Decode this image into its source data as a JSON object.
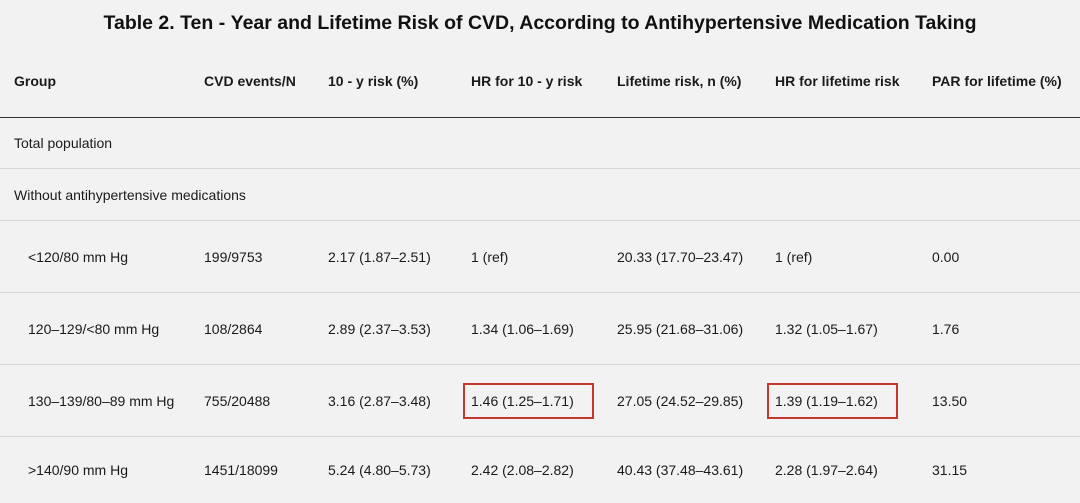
{
  "title": "Table 2. Ten ‑ Year and Lifetime Risk of CVD, According to Antihypertensive Medication Taking",
  "headers": [
    "Group",
    "CVD events/N",
    "10 ‑ y risk (%)",
    "HR for 10 ‑ y risk",
    "Lifetime risk, n (%)",
    "HR for lifetime risk",
    "PAR for lifetime (%)"
  ],
  "sections": [
    "Total population",
    "Without antihypertensive medications"
  ],
  "rows": [
    {
      "group": "<120/80 mm Hg",
      "events": "199/9753",
      "risk10": "2.17 (1.87–2.51)",
      "hr10": "1 (ref)",
      "lifetime": "20.33 (17.70–23.47)",
      "hrlife": "1 (ref)",
      "par": "0.00"
    },
    {
      "group": "120–129/<80 mm Hg",
      "events": "108/2864",
      "risk10": "2.89 (2.37–3.53)",
      "hr10": "1.34 (1.06–1.69)",
      "lifetime": "25.95 (21.68–31.06)",
      "hrlife": "1.32 (1.05–1.67)",
      "par": "1.76"
    },
    {
      "group": "130–139/80–89 mm Hg",
      "events": "755/20488",
      "risk10": "3.16 (2.87–3.48)",
      "hr10": "1.46 (1.25–1.71)",
      "lifetime": "27.05 (24.52–29.85)",
      "hrlife": "1.39 (1.19–1.62)",
      "par": "13.50"
    },
    {
      "group": ">140/90 mm Hg",
      "events": "1451/18099",
      "risk10": "5.24 (4.80–5.73)",
      "hr10": "2.42 (2.08–2.82)",
      "lifetime": "40.43 (37.48–43.61)",
      "hrlife": "2.28 (1.97–2.64)",
      "par": "31.15"
    }
  ],
  "highlight_color": "#c0392b"
}
